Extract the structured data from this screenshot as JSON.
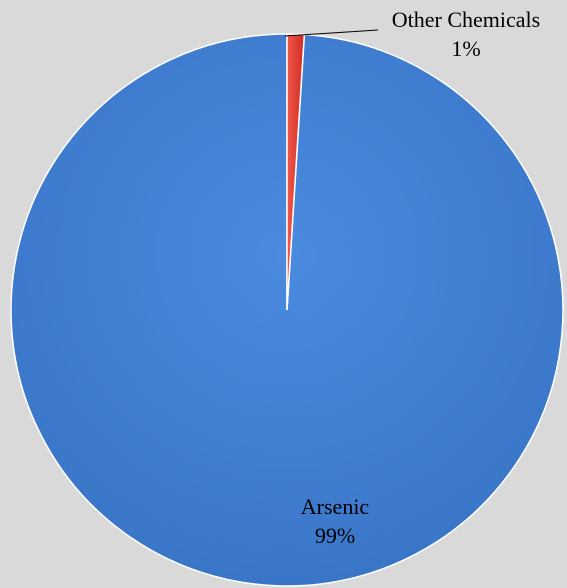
{
  "chart_data": {
    "type": "pie",
    "title": "",
    "slices": [
      {
        "name": "Arsenic",
        "value": 99,
        "label": "99%",
        "color": "#3f7fd6"
      },
      {
        "name": "Other Chemicals",
        "value": 1,
        "label": "1%",
        "color": "#e23a2e"
      }
    ],
    "legend": "none",
    "background_color": "#d9d9d9"
  }
}
